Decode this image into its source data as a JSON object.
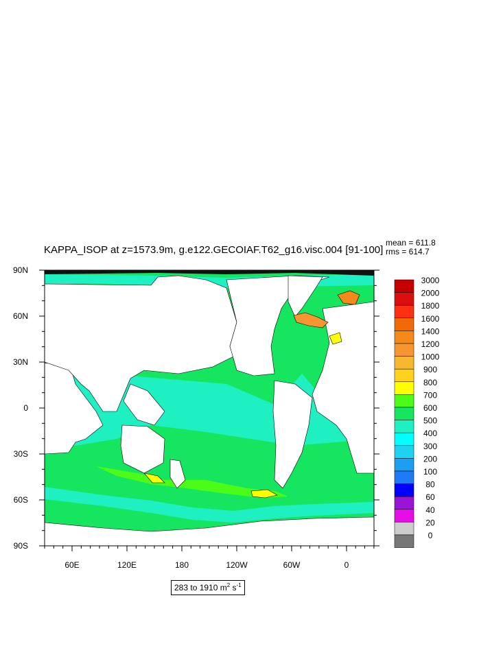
{
  "title": "KAPPA_ISOP at z=1573.9m, g.e122.GECOIAF.T62_g16.visc.004 [91-100]",
  "stats": {
    "mean": "mean = 611.8",
    "rms": "rms = 614.7"
  },
  "map": {
    "lat_labels": [
      "90N",
      "60N",
      "30N",
      "0",
      "30S",
      "60S",
      "90S"
    ],
    "lon_labels": [
      "60E",
      "120E",
      "180",
      "120W",
      "60W",
      "0"
    ]
  },
  "colorbar": {
    "levels": [
      "3000",
      "2000",
      "1800",
      "1600",
      "1400",
      "1200",
      "1000",
      "900",
      "800",
      "700",
      "600",
      "500",
      "400",
      "300",
      "200",
      "100",
      "80",
      "60",
      "40",
      "20",
      "0"
    ],
    "colors": [
      "#c40000",
      "#dc0f0f",
      "#ff3010",
      "#f06a08",
      "#f5891a",
      "#f79530",
      "#f7b630",
      "#ffd21e",
      "#ffff00",
      "#4cfc18",
      "#15e55f",
      "#1ff0c2",
      "#00ffff",
      "#1ed2f0",
      "#1e9ef0",
      "#1e7af5",
      "#0000ff",
      "#9914d6",
      "#e50fe5",
      "#cccccc",
      "#777777"
    ]
  },
  "units": {
    "prefix": "283 to 1910 m",
    "exp1": "2",
    "mid": " s",
    "exp2": "-1"
  },
  "colors": {
    "green": "#15e55f",
    "cyan": "#1ff0c2",
    "land": "#ffffff"
  }
}
